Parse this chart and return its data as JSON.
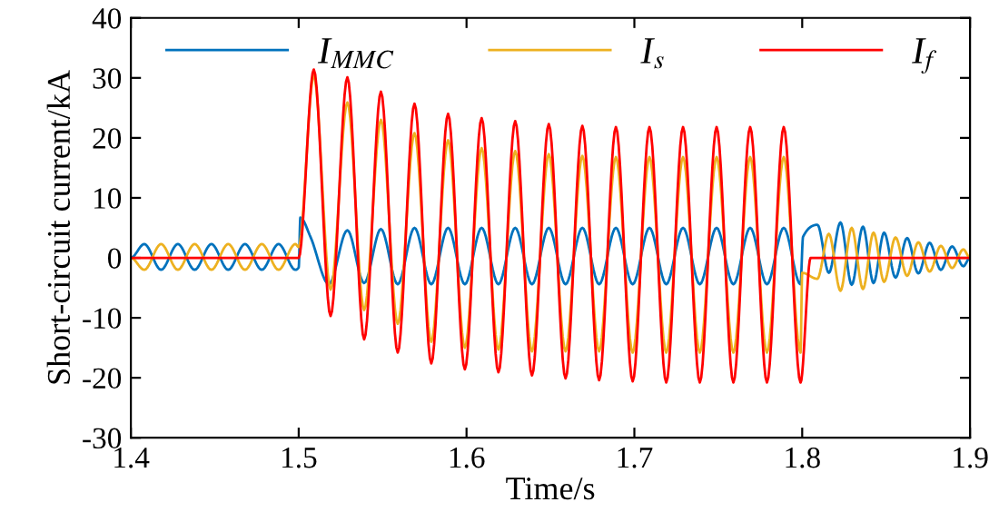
{
  "chart_data": {
    "type": "line",
    "xlabel": "Time/s",
    "ylabel": "Short-circuit current/kA",
    "xlim": [
      1.4,
      1.9
    ],
    "xticks": [
      1.4,
      1.5,
      1.6,
      1.7,
      1.8,
      1.9
    ],
    "ylim": [
      -30,
      40
    ],
    "yticks": [
      -30,
      -20,
      -10,
      0,
      10,
      20,
      30,
      40
    ],
    "grid": false,
    "legend": "top",
    "marker": "none",
    "line_style": "solid",
    "series": [
      {
        "name": "I$_{MMC}$",
        "color": "#0072bd",
        "x": [
          1.4,
          1.408,
          1.418,
          1.428,
          1.438,
          1.448,
          1.458,
          1.468,
          1.478,
          1.488,
          1.498,
          1.5,
          1.501,
          1.507,
          1.518,
          1.529,
          1.539,
          1.549,
          1.559,
          1.569,
          1.579,
          1.589,
          1.599,
          1.609,
          1.619,
          1.629,
          1.639,
          1.649,
          1.659,
          1.669,
          1.679,
          1.689,
          1.699,
          1.709,
          1.719,
          1.729,
          1.739,
          1.749,
          1.759,
          1.769,
          1.779,
          1.789,
          1.799,
          1.8005,
          1.8091,
          1.8159,
          1.8228,
          1.8295,
          1.8362,
          1.8425,
          1.8488,
          1.8556,
          1.8625,
          1.8692,
          1.8759,
          1.8826,
          1.8893,
          1.896,
          1.9
        ],
        "values": [
          0,
          2.3,
          -2,
          2.3,
          -2,
          2.3,
          -2,
          2.3,
          -2,
          2.3,
          -2,
          -1.6,
          6.7,
          3.5,
          -4.4,
          4.6,
          -4.2,
          4.8,
          -4.4,
          5.0,
          -4.4,
          5.0,
          -4.4,
          5.0,
          -4.4,
          5.0,
          -4.4,
          5.0,
          -4.4,
          5.0,
          -4.4,
          5.0,
          -4.4,
          5.0,
          -4.4,
          5.0,
          -4.4,
          5.0,
          -4.4,
          5.0,
          -4.4,
          5.0,
          -4.4,
          3.5,
          5.5,
          -2.5,
          5.9,
          -4.5,
          5.2,
          -4.2,
          4.2,
          -3.3,
          3.3,
          -2.6,
          2.5,
          -2.0,
          1.9,
          -1.4,
          0
        ]
      },
      {
        "name": "I$_{s}$",
        "color": "#edb120",
        "x": [
          1.4,
          1.408,
          1.418,
          1.428,
          1.438,
          1.448,
          1.458,
          1.468,
          1.478,
          1.488,
          1.498,
          1.5,
          1.509,
          1.519,
          1.529,
          1.539,
          1.549,
          1.559,
          1.569,
          1.579,
          1.589,
          1.599,
          1.609,
          1.619,
          1.629,
          1.639,
          1.649,
          1.659,
          1.669,
          1.679,
          1.689,
          1.699,
          1.709,
          1.719,
          1.729,
          1.739,
          1.749,
          1.759,
          1.769,
          1.779,
          1.789,
          1.799,
          1.8,
          1.809,
          1.8159,
          1.8228,
          1.8295,
          1.8362,
          1.8425,
          1.8488,
          1.8556,
          1.8625,
          1.8692,
          1.8759,
          1.8826,
          1.8893,
          1.896,
          1.9
        ],
        "values": [
          0,
          -2,
          2.3,
          -2,
          2.3,
          -2,
          2.3,
          -2,
          2.3,
          -2,
          2.3,
          1.8,
          30.4,
          -5.3,
          25.9,
          -8.7,
          23,
          -11,
          20.8,
          -14,
          19.6,
          -15,
          18.3,
          -15.3,
          17.8,
          -15.6,
          17.3,
          -15.6,
          17,
          -15.6,
          16.8,
          -15.8,
          16.8,
          -15.8,
          16.8,
          -15.8,
          16.8,
          -15.8,
          16.8,
          -15.8,
          16.8,
          -15.8,
          -2.5,
          -3.5,
          4.0,
          -5.5,
          5.0,
          -5.2,
          4.2,
          -4.0,
          3.4,
          -3.0,
          2.6,
          -2.3,
          2.0,
          -1.7,
          1.4,
          0
        ]
      },
      {
        "name": "I$_{f}$",
        "color": "#ff0000",
        "x": [
          1.4,
          1.5,
          1.509,
          1.519,
          1.529,
          1.539,
          1.549,
          1.559,
          1.569,
          1.579,
          1.589,
          1.599,
          1.609,
          1.619,
          1.629,
          1.639,
          1.649,
          1.659,
          1.669,
          1.679,
          1.689,
          1.699,
          1.709,
          1.719,
          1.729,
          1.739,
          1.749,
          1.759,
          1.769,
          1.779,
          1.789,
          1.799,
          1.805,
          1.9
        ],
        "values": [
          0,
          0,
          31.4,
          -9.7,
          30.1,
          -13.6,
          27.7,
          -15.8,
          25.7,
          -17.6,
          24.0,
          -18.6,
          23.3,
          -19.1,
          22.8,
          -19.6,
          22.3,
          -20.1,
          22.0,
          -20.4,
          21.8,
          -20.6,
          21.8,
          -20.8,
          21.8,
          -20.8,
          21.8,
          -20.8,
          21.8,
          -20.8,
          21.8,
          -20.8,
          0,
          0
        ]
      }
    ]
  }
}
